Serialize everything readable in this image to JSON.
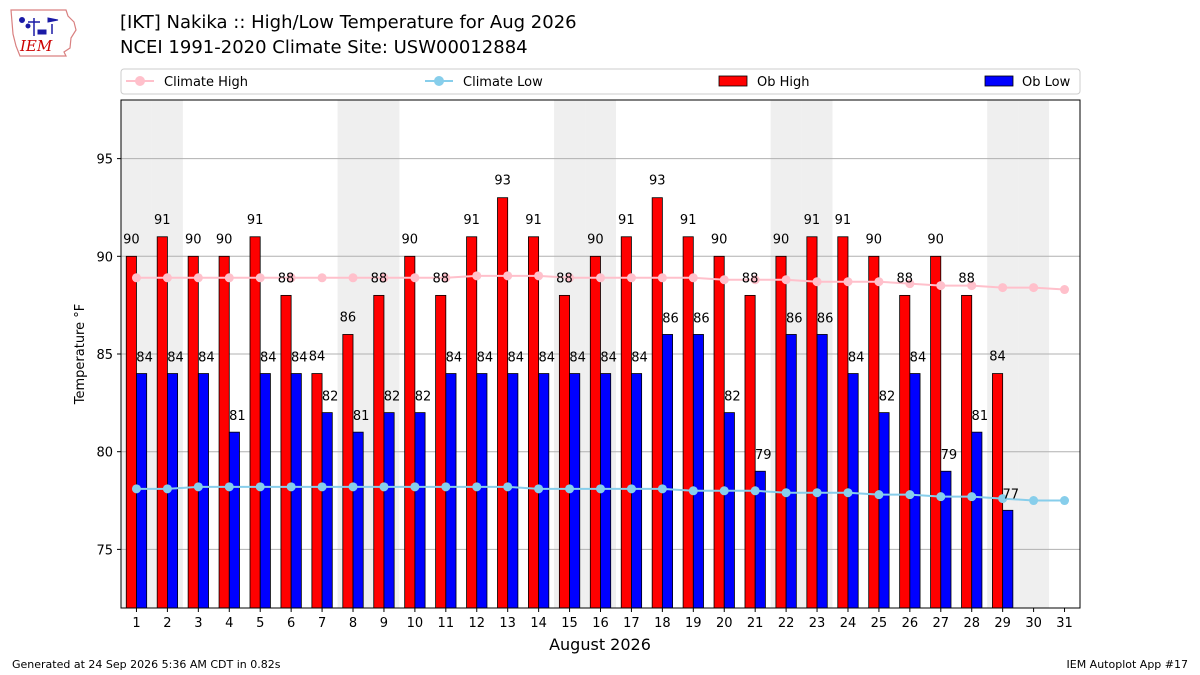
{
  "header": {
    "title_line1": "[IKT] Nakika :: High/Low Temperature for Aug 2026",
    "title_line2": "NCEI 1991-2020 Climate Site: USW00012884"
  },
  "logo": {
    "text": "IEM",
    "colors": {
      "outline": "#d98080",
      "text": "#cc0000",
      "icons": "#1a1aa6"
    }
  },
  "footer": {
    "generated": "Generated at 24 Sep 2026 5:36 AM CDT in 0.82s",
    "app": "IEM Autoplot App #17"
  },
  "chart_data": {
    "type": "bar",
    "xlabel": "August 2026",
    "ylabel": "Temperature °F",
    "ylim": [
      72,
      98
    ],
    "yticks": [
      75,
      80,
      85,
      90,
      95
    ],
    "grid": true,
    "legend_position": "top",
    "x": [
      1,
      2,
      3,
      4,
      5,
      6,
      7,
      8,
      9,
      10,
      11,
      12,
      13,
      14,
      15,
      16,
      17,
      18,
      19,
      20,
      21,
      22,
      23,
      24,
      25,
      26,
      27,
      28,
      29,
      30,
      31
    ],
    "weekend_shading_days": [
      1,
      2,
      8,
      9,
      15,
      16,
      22,
      23,
      29,
      30
    ],
    "colors": {
      "ob_high": "#ff0000",
      "ob_low": "#0000ff",
      "climate_high": "#ffc0cb",
      "climate_low": "#87ceeb",
      "weekend_shade": "#efefef"
    },
    "series": [
      {
        "name": "Ob High",
        "kind": "bar",
        "values": [
          90,
          91,
          90,
          90,
          91,
          88,
          84,
          86,
          88,
          90,
          88,
          91,
          93,
          91,
          88,
          90,
          91,
          93,
          91,
          90,
          88,
          90,
          91,
          91,
          90,
          88,
          90,
          88,
          84,
          null,
          null
        ],
        "labels": [
          "90",
          "91",
          "90",
          "90",
          "91",
          "88",
          "84",
          "86",
          "88",
          "90",
          "88",
          "91",
          "93",
          "91",
          "88",
          "90",
          "91",
          "93",
          "91",
          "90",
          "88",
          "90",
          "91",
          "91",
          "90",
          "88",
          "90",
          "88",
          "84",
          "",
          ""
        ]
      },
      {
        "name": "Ob Low",
        "kind": "bar",
        "values": [
          84,
          84,
          84,
          81,
          84,
          84,
          82,
          81,
          82,
          82,
          84,
          84,
          84,
          84,
          84,
          84,
          84,
          86,
          86,
          82,
          79,
          86,
          86,
          84,
          82,
          84,
          79,
          81,
          77,
          null,
          null
        ],
        "labels": [
          "84",
          "84",
          "84",
          "81",
          "84",
          "84",
          "82",
          "81",
          "82",
          "82",
          "84",
          "84",
          "84",
          "84",
          "84",
          "84",
          "84",
          "86",
          "86",
          "82",
          "79",
          "86",
          "86",
          "84",
          "82",
          "84",
          "79",
          "81",
          "77",
          "",
          ""
        ]
      },
      {
        "name": "Climate High",
        "kind": "line",
        "values": [
          88.9,
          88.9,
          88.9,
          88.9,
          88.9,
          88.9,
          88.9,
          88.9,
          88.9,
          88.9,
          88.9,
          89.0,
          89.0,
          89.0,
          88.9,
          88.9,
          88.9,
          88.9,
          88.9,
          88.8,
          88.8,
          88.8,
          88.7,
          88.7,
          88.7,
          88.6,
          88.5,
          88.5,
          88.4,
          88.4,
          88.3
        ]
      },
      {
        "name": "Climate Low",
        "kind": "line",
        "values": [
          78.1,
          78.1,
          78.2,
          78.2,
          78.2,
          78.2,
          78.2,
          78.2,
          78.2,
          78.2,
          78.2,
          78.2,
          78.2,
          78.1,
          78.1,
          78.1,
          78.1,
          78.1,
          78.0,
          78.0,
          78.0,
          77.9,
          77.9,
          77.9,
          77.8,
          77.8,
          77.7,
          77.7,
          77.6,
          77.5,
          77.5
        ]
      }
    ]
  }
}
